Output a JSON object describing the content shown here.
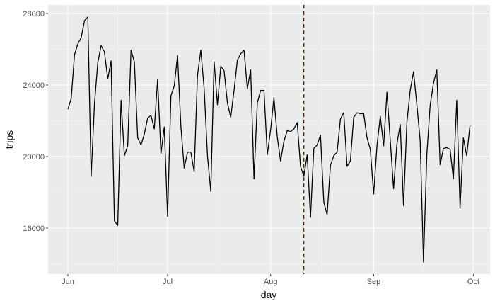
{
  "chart_data": {
    "type": "line",
    "title": "",
    "xlabel": "day",
    "ylabel": "trips",
    "x_ticks": [
      "Jun",
      "Jul",
      "Aug",
      "Sep",
      "Oct"
    ],
    "y_ticks": [
      16000,
      20000,
      24000,
      28000
    ],
    "ylim": [
      13000,
      28500
    ],
    "xlim": [
      "2015-05-25",
      "2015-10-05"
    ],
    "grid": true,
    "legend": null,
    "line_color": "#000000",
    "vline": {
      "x": "Aug 11",
      "color": "#8b0000",
      "style": "dashed"
    },
    "x": [
      "Jun 1",
      "Jun 2",
      "Jun 3",
      "Jun 4",
      "Jun 5",
      "Jun 6",
      "Jun 7",
      "Jun 8",
      "Jun 9",
      "Jun 10",
      "Jun 11",
      "Jun 12",
      "Jun 13",
      "Jun 14",
      "Jun 15",
      "Jun 16",
      "Jun 17",
      "Jun 18",
      "Jun 19",
      "Jun 20",
      "Jun 21",
      "Jun 22",
      "Jun 23",
      "Jun 24",
      "Jun 25",
      "Jun 26",
      "Jun 27",
      "Jun 28",
      "Jun 29",
      "Jun 30",
      "Jul 1",
      "Jul 2",
      "Jul 3",
      "Jul 4",
      "Jul 5",
      "Jul 6",
      "Jul 7",
      "Jul 8",
      "Jul 9",
      "Jul 10",
      "Jul 11",
      "Jul 12",
      "Jul 13",
      "Jul 14",
      "Jul 15",
      "Jul 16",
      "Jul 17",
      "Jul 18",
      "Jul 19",
      "Jul 20",
      "Jul 21",
      "Jul 22",
      "Jul 23",
      "Jul 24",
      "Jul 25",
      "Jul 26",
      "Jul 27",
      "Jul 28",
      "Jul 29",
      "Jul 30",
      "Jul 31",
      "Aug 1",
      "Aug 2",
      "Aug 3",
      "Aug 4",
      "Aug 5",
      "Aug 6",
      "Aug 7",
      "Aug 8",
      "Aug 9",
      "Aug 10",
      "Aug 11",
      "Aug 12",
      "Aug 13",
      "Aug 14",
      "Aug 15",
      "Aug 16",
      "Aug 17",
      "Aug 18",
      "Aug 19",
      "Aug 20",
      "Aug 21",
      "Aug 22",
      "Aug 23",
      "Aug 24",
      "Aug 25",
      "Aug 26",
      "Aug 27",
      "Aug 28",
      "Aug 29",
      "Aug 30",
      "Aug 31",
      "Sep 1",
      "Sep 2",
      "Sep 3",
      "Sep 4",
      "Sep 5",
      "Sep 6",
      "Sep 7",
      "Sep 8",
      "Sep 9",
      "Sep 10",
      "Sep 11",
      "Sep 12",
      "Sep 13",
      "Sep 14",
      "Sep 15",
      "Sep 16",
      "Sep 17",
      "Sep 18",
      "Sep 19",
      "Sep 20",
      "Sep 21",
      "Sep 22",
      "Sep 23",
      "Sep 24",
      "Sep 25",
      "Sep 26",
      "Sep 27",
      "Sep 28",
      "Sep 29",
      "Sep 30"
    ],
    "series": [
      {
        "name": "trips",
        "values": [
          22650,
          23250,
          25700,
          26300,
          26650,
          27600,
          27800,
          18900,
          22950,
          25250,
          26200,
          25850,
          24350,
          25350,
          16400,
          16150,
          23150,
          20050,
          20600,
          25950,
          25300,
          21050,
          20650,
          21250,
          22150,
          22300,
          21550,
          24300,
          20150,
          21650,
          16650,
          23400,
          23950,
          25650,
          21700,
          19350,
          20250,
          20250,
          19150,
          24550,
          25950,
          23800,
          20050,
          18050,
          25300,
          22900,
          25050,
          24800,
          23000,
          22200,
          23700,
          25400,
          25750,
          25950,
          23800,
          24850,
          18750,
          23000,
          23700,
          23700,
          20100,
          21500,
          23300,
          21100,
          19750,
          20850,
          21450,
          21400,
          21550,
          21900,
          19450,
          18900,
          20100,
          16600,
          20450,
          20650,
          21200,
          17450,
          16750,
          19500,
          20050,
          20250,
          22100,
          22450,
          19450,
          19750,
          22200,
          22450,
          22400,
          22400,
          21050,
          20400,
          17900,
          20600,
          22250,
          20600,
          23600,
          20900,
          18200,
          20700,
          21800,
          17250,
          21900,
          23700,
          24750,
          22900,
          20900,
          14100,
          20100,
          22850,
          24100,
          24850,
          19550,
          20450,
          20500,
          20400,
          18750,
          23150,
          17100,
          21050,
          20050,
          21750
        ]
      }
    ]
  },
  "axes": {
    "x_title": "day",
    "y_title": "trips"
  }
}
